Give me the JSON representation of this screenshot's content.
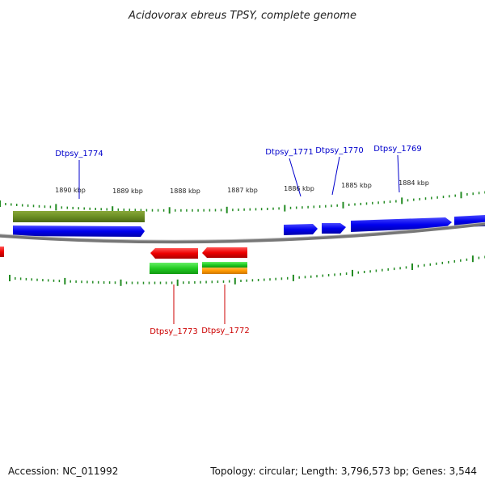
{
  "title": "Acidovorax ebreus TPSY, complete genome",
  "scale_labels": [
    "1890 kbp",
    "1889 kbp",
    "1888 kbp",
    "1887 kbp",
    "1886 kbp",
    "1885 kbp",
    "1884 kbp"
  ],
  "genes_top": [
    {
      "label": "Dtpsy_1774",
      "color": "#0000cc"
    },
    {
      "label": "Dtpsy_1771",
      "color": "#0000cc"
    },
    {
      "label": "Dtpsy_1770",
      "color": "#0000cc"
    },
    {
      "label": "Dtpsy_1769",
      "color": "#0000cc"
    }
  ],
  "genes_bottom": [
    {
      "label": "Dtpsy_1773",
      "color": "#cc0000"
    },
    {
      "label": "Dtpsy_1772",
      "color": "#cc0000"
    }
  ],
  "colors": {
    "forward_cds": "#0000ff",
    "reverse_cds": "#ff0000",
    "feature_olive": "#6b8e23",
    "feature_green": "#33cc33",
    "feature_orange": "#ff9900",
    "backbone": "#888888",
    "ticks": "#228b22"
  },
  "footer": {
    "accession": "Accession: NC_011992",
    "summary": "Topology: circular; Length: 3,796,573 bp; Genes: 3,544"
  }
}
